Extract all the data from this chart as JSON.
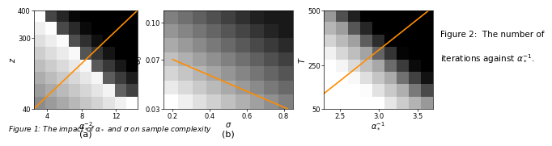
{
  "fig2": {
    "xlabel": "$\\alpha_*^{-1}$",
    "ylabel": "$T$",
    "xlim": [
      2.3,
      3.7
    ],
    "ylim": [
      50,
      500
    ],
    "xticks": [
      2.5,
      3.0,
      3.5
    ],
    "yticks": [
      50,
      250,
      500
    ],
    "line_x": [
      2.3,
      3.65
    ],
    "line_y": [
      120,
      500
    ],
    "line_color": "#FF8C00",
    "grid_nx": 9,
    "grid_ny": 8
  },
  "fig1a": {
    "xlabel": "$\\alpha_*^{-2}$",
    "ylabel": "$z$",
    "xlim": [
      2.5,
      14.5
    ],
    "ylim": [
      40,
      400
    ],
    "xticks": [
      4,
      8,
      12
    ],
    "yticks": [
      40,
      300,
      400
    ],
    "line_x": [
      2.5,
      14.5
    ],
    "line_y": [
      40,
      400
    ],
    "line_color": "#FF8C00",
    "label": "(a)",
    "grid_nx": 9,
    "grid_ny": 8
  },
  "fig1b": {
    "xlabel": "$\\sigma$",
    "ylabel": "$\\delta_0$",
    "xlim": [
      0.15,
      0.85
    ],
    "ylim": [
      0.03,
      0.11
    ],
    "xticks": [
      0.2,
      0.4,
      0.6,
      0.8
    ],
    "yticks": [
      0.03,
      0.07,
      0.1
    ],
    "line_x": [
      0.2,
      0.82
    ],
    "line_y": [
      0.07,
      0.03
    ],
    "line_color": "#FF8C00",
    "label": "(b)",
    "grid_nx": 9,
    "grid_ny": 7
  },
  "fig1_caption": "Figure 1: The impact of $\\alpha_*$ and $\\sigma$ on sample complexity",
  "fig2_caption_line1": "Figure 2:  The number of",
  "fig2_caption_line2": "iterations against $\\alpha_*^{-1}$.",
  "background_color": "#ffffff"
}
